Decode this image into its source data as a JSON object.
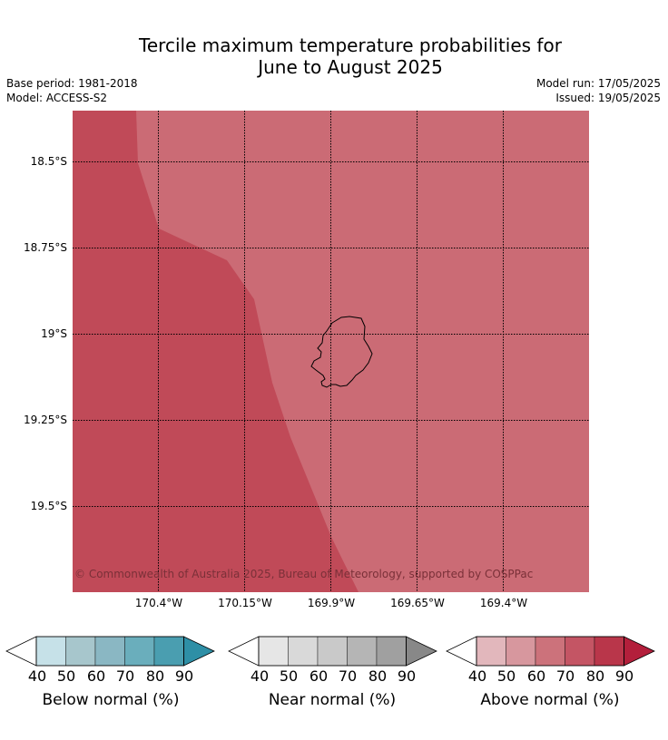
{
  "title": {
    "line1": "Tercile maximum temperature probabilities for",
    "line2": "June to August 2025"
  },
  "meta": {
    "base_period": "Base period: 1981-2018",
    "model": "Model: ACCESS-S2",
    "model_run": "Model run: 17/05/2025",
    "issued": "Issued: 19/05/2025"
  },
  "map": {
    "lat_ticks": [
      "18.5°S",
      "18.75°S",
      "19°S",
      "19.25°S",
      "19.5°S"
    ],
    "lon_ticks": [
      "170.4°W",
      "170.15°W",
      "169.9°W",
      "169.65°W",
      "169.4°W"
    ],
    "copyright": "© Commonwealth of Australia 2025, Bureau of Meteorology, supported by COSPPac",
    "colors": {
      "above_70_80": "#c04a58",
      "above_60_70": "#cb6b75"
    },
    "island": "Niue"
  },
  "colorbars": [
    {
      "title": "Below normal (%)",
      "labels": [
        "40",
        "50",
        "60",
        "70",
        "80",
        "90"
      ],
      "colors": [
        "#ffffff",
        "#c6e1e8",
        "#a7c6cc",
        "#8ab7c3",
        "#6aaebc",
        "#4a9eb0",
        "#2e8fa6"
      ]
    },
    {
      "title": "Near normal (%)",
      "labels": [
        "40",
        "50",
        "60",
        "70",
        "80",
        "90"
      ],
      "colors": [
        "#ffffff",
        "#e6e6e6",
        "#d9d9d9",
        "#c9c9c9",
        "#b5b5b5",
        "#a0a0a0",
        "#888888"
      ]
    },
    {
      "title": "Above normal (%)",
      "labels": [
        "40",
        "50",
        "60",
        "70",
        "80",
        "90"
      ],
      "colors": [
        "#ffffff",
        "#e2b7bc",
        "#d7979e",
        "#cc727b",
        "#c45564",
        "#b9364a",
        "#b31f3b"
      ]
    }
  ]
}
